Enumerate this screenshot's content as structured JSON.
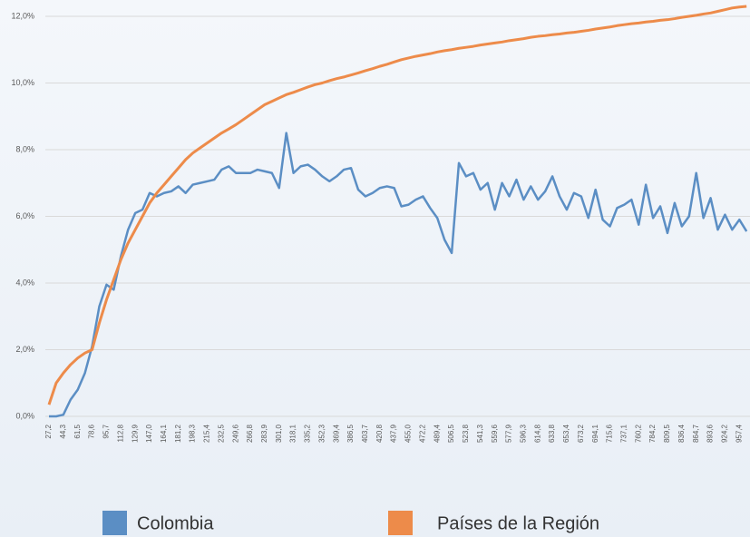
{
  "chart_data": {
    "type": "line",
    "categories": [
      "27,2",
      null,
      "44,3",
      null,
      "61,5",
      null,
      "78,6",
      null,
      "95,7",
      null,
      "112,8",
      null,
      "129,9",
      null,
      "147,0",
      null,
      "164,1",
      null,
      "181,2",
      null,
      "198,3",
      null,
      "215,4",
      null,
      "232,5",
      null,
      "249,6",
      null,
      "266,8",
      null,
      "283,9",
      null,
      "301,0",
      null,
      "318,1",
      null,
      "335,2",
      null,
      "352,3",
      null,
      "369,4",
      null,
      "386,5",
      null,
      "403,7",
      null,
      "420,8",
      null,
      "437,9",
      null,
      "455,0",
      null,
      "472,2",
      null,
      "489,4",
      null,
      "506,5",
      null,
      "523,8",
      null,
      "541,3",
      null,
      "559,6",
      null,
      "577,9",
      null,
      "596,3",
      null,
      "614,8",
      null,
      "633,8",
      null,
      "653,4",
      null,
      "673,2",
      null,
      "694,1",
      null,
      "715,6",
      null,
      "737,1",
      null,
      "760,2",
      null,
      "784,2",
      null,
      "809,5",
      null,
      "836,4",
      null,
      "864,7",
      null,
      "893,6",
      null,
      "924,2",
      null,
      "957,4",
      null
    ],
    "series": [
      {
        "name": "Colombia",
        "color": "#5b8ec4",
        "values": [
          0,
          0,
          0.05,
          0.5,
          0.8,
          1.3,
          2.1,
          3.3,
          3.95,
          3.8,
          4.8,
          5.6,
          6.1,
          6.2,
          6.7,
          6.6,
          6.7,
          6.75,
          6.9,
          6.7,
          6.95,
          7.0,
          7.05,
          7.1,
          7.4,
          7.5,
          7.3,
          7.3,
          7.3,
          7.4,
          7.35,
          7.3,
          6.85,
          8.5,
          7.3,
          7.5,
          7.55,
          7.4,
          7.2,
          7.05,
          7.2,
          7.4,
          7.45,
          6.8,
          6.6,
          6.7,
          6.85,
          6.9,
          6.85,
          6.3,
          6.35,
          6.5,
          6.6,
          6.25,
          5.95,
          5.3,
          4.9,
          7.6,
          7.2,
          7.3,
          6.8,
          7.0,
          6.2,
          7.0,
          6.6,
          7.1,
          6.5,
          6.9,
          6.5,
          6.75,
          7.2,
          6.6,
          6.2,
          6.7,
          6.6,
          5.95,
          6.8,
          5.9,
          5.7,
          6.25,
          6.35,
          6.5,
          5.75,
          6.95,
          5.95,
          6.3,
          5.5,
          6.4,
          5.7,
          6.0,
          7.3,
          5.95,
          6.55,
          5.6,
          6.05,
          5.6,
          5.9,
          5.55
        ]
      },
      {
        "name": "Países de la Región",
        "color": "#ed8b4a",
        "values": [
          0.35,
          1.0,
          1.3,
          1.55,
          1.75,
          1.9,
          2.0,
          2.8,
          3.5,
          4.1,
          4.7,
          5.2,
          5.6,
          6.0,
          6.4,
          6.7,
          6.95,
          7.2,
          7.45,
          7.7,
          7.9,
          8.05,
          8.2,
          8.35,
          8.5,
          8.62,
          8.75,
          8.9,
          9.05,
          9.2,
          9.35,
          9.45,
          9.55,
          9.65,
          9.72,
          9.8,
          9.88,
          9.95,
          10.0,
          10.07,
          10.13,
          10.18,
          10.24,
          10.3,
          10.37,
          10.43,
          10.5,
          10.56,
          10.63,
          10.7,
          10.75,
          10.8,
          10.84,
          10.88,
          10.93,
          10.97,
          11.0,
          11.04,
          11.07,
          11.1,
          11.14,
          11.17,
          11.2,
          11.23,
          11.27,
          11.3,
          11.33,
          11.37,
          11.4,
          11.42,
          11.45,
          11.47,
          11.5,
          11.52,
          11.55,
          11.58,
          11.62,
          11.65,
          11.68,
          11.72,
          11.75,
          11.78,
          11.8,
          11.83,
          11.85,
          11.88,
          11.9,
          11.93,
          11.97,
          12.0,
          12.03,
          12.07,
          12.1,
          12.15,
          12.2,
          12.25,
          12.28,
          12.3
        ]
      }
    ],
    "ylim": [
      0,
      12
    ],
    "yticks": [
      {
        "value": 0,
        "label": "0,0%"
      },
      {
        "value": 2,
        "label": "2,0%"
      },
      {
        "value": 4,
        "label": "4,0%"
      },
      {
        "value": 6,
        "label": "6,0%"
      },
      {
        "value": 8,
        "label": "8,0%"
      },
      {
        "value": 10,
        "label": "10,0%"
      },
      {
        "value": 12,
        "label": "12,0%"
      }
    ],
    "grid": true,
    "legend": "bottom"
  }
}
